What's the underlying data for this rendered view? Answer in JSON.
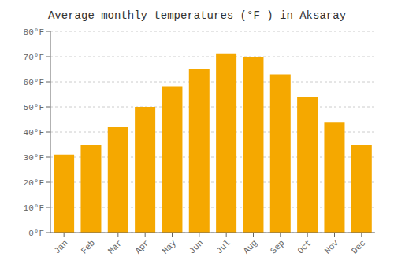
{
  "chart_data": {
    "type": "bar",
    "title": "Average monthly temperatures (°F ) in Aksaray",
    "categories": [
      "Jan",
      "Feb",
      "Mar",
      "Apr",
      "May",
      "Jun",
      "Jul",
      "Aug",
      "Sep",
      "Oct",
      "Nov",
      "Dec"
    ],
    "values": [
      31,
      35,
      42,
      50,
      58,
      65,
      71,
      70,
      63,
      54,
      44,
      35
    ],
    "color": "#F5A800",
    "ylim": [
      0,
      80
    ],
    "yticks": [
      {
        "value": 0,
        "label": "0°F"
      },
      {
        "value": 10,
        "label": "10°F"
      },
      {
        "value": 20,
        "label": "20°F"
      },
      {
        "value": 30,
        "label": "30°F"
      },
      {
        "value": 40,
        "label": "40°F"
      },
      {
        "value": 50,
        "label": "50°F"
      },
      {
        "value": 60,
        "label": "60°F"
      },
      {
        "value": 70,
        "label": "70°F"
      },
      {
        "value": 80,
        "label": "80°F"
      }
    ],
    "grid": true
  }
}
